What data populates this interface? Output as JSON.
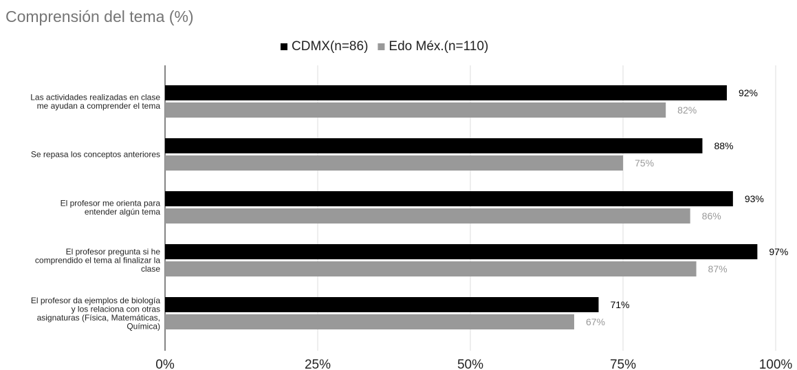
{
  "chart_data": {
    "type": "bar",
    "orientation": "horizontal",
    "title": "Comprensión del tema (%)",
    "categories": [
      [
        "Las actividades realizadas en clase",
        "me ayudan a comprender el tema"
      ],
      [
        "Se repasa los conceptos anteriores"
      ],
      [
        "El profesor me orienta para",
        "entender algún tema"
      ],
      [
        "El profesor pregunta si he",
        "comprendido el tema al finalizar la",
        "clase"
      ],
      [
        "El profesor da ejemplos de biología",
        "y los relaciona con otras",
        "asignaturas (Física, Matemáticas,",
        "Química)"
      ]
    ],
    "series": [
      {
        "name": "CDMX(n=86)",
        "color": "#000000",
        "label_color": "#000000",
        "values": [
          92,
          88,
          93,
          97,
          71
        ],
        "labels": [
          "92%",
          "88%",
          "93%",
          "97%",
          "71%"
        ]
      },
      {
        "name": "Edo Méx.(n=110)",
        "color": "#999999",
        "label_color": "#999999",
        "values": [
          82,
          75,
          86,
          87,
          67
        ],
        "labels": [
          "82%",
          "75%",
          "86%",
          "87%",
          "67%"
        ]
      }
    ],
    "xlim": [
      0,
      100
    ],
    "xticks": [
      0,
      25,
      50,
      75,
      100
    ],
    "xtick_labels": [
      "0%",
      "25%",
      "50%",
      "75%",
      "100%"
    ],
    "grid": true,
    "legend_position": "top"
  }
}
